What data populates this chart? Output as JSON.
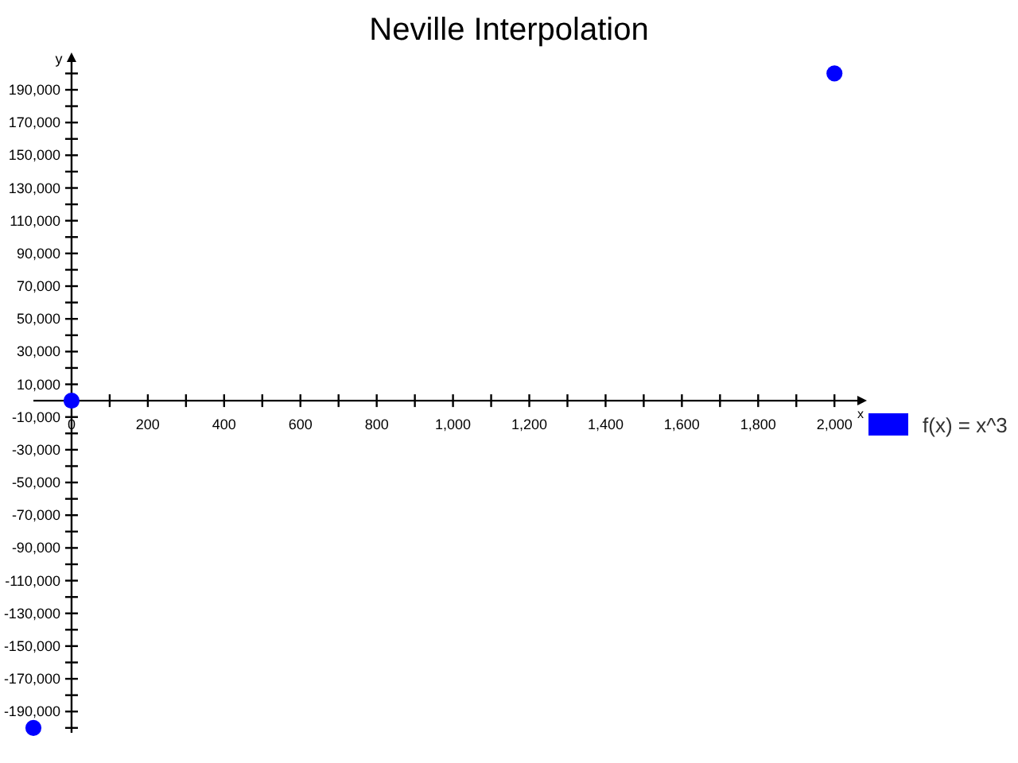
{
  "chart_data": {
    "type": "scatter",
    "title": "Neville Interpolation",
    "xlabel": "x",
    "ylabel": "y",
    "series": [
      {
        "name": "f(x) = x^3",
        "color": "#0000ff",
        "x": [
          -100,
          0,
          2000
        ],
        "values": [
          -200000,
          0,
          200000
        ]
      }
    ],
    "xlim": [
      -100,
      2060
    ],
    "ylim": [
      -203000,
      207000
    ],
    "xticks": [
      0,
      {
        "value": 100,
        "label": null
      },
      200,
      {
        "value": 300,
        "label": null
      },
      400,
      {
        "value": 500,
        "label": null
      },
      600,
      {
        "value": 700,
        "label": null
      },
      800,
      {
        "value": 900,
        "label": null
      },
      {
        "value": 1000,
        "label": "1,000"
      },
      {
        "value": 1100,
        "label": null
      },
      {
        "value": 1200,
        "label": "1,200"
      },
      {
        "value": 1300,
        "label": null
      },
      {
        "value": 1400,
        "label": "1,400"
      },
      {
        "value": 1500,
        "label": null
      },
      {
        "value": 1600,
        "label": "1,600"
      },
      {
        "value": 1700,
        "label": null
      },
      {
        "value": 1800,
        "label": "1,800"
      },
      {
        "value": 1900,
        "label": null
      },
      {
        "value": 2000,
        "label": "2,000"
      }
    ],
    "yticks": [
      {
        "value": -200000,
        "label": null
      },
      {
        "value": -190000,
        "label": "-190,000"
      },
      {
        "value": -180000,
        "label": null
      },
      {
        "value": -170000,
        "label": "-170,000"
      },
      {
        "value": -160000,
        "label": null
      },
      {
        "value": -150000,
        "label": "-150,000"
      },
      {
        "value": -140000,
        "label": null
      },
      {
        "value": -130000,
        "label": "-130,000"
      },
      {
        "value": -120000,
        "label": null
      },
      {
        "value": -110000,
        "label": "-110,000"
      },
      {
        "value": -100000,
        "label": null
      },
      {
        "value": -90000,
        "label": "-90,000"
      },
      {
        "value": -80000,
        "label": null
      },
      {
        "value": -70000,
        "label": "-70,000"
      },
      {
        "value": -60000,
        "label": null
      },
      {
        "value": -50000,
        "label": "-50,000"
      },
      {
        "value": -40000,
        "label": null
      },
      {
        "value": -30000,
        "label": "-30,000"
      },
      {
        "value": -20000,
        "label": null
      },
      {
        "value": -10000,
        "label": "-10,000"
      },
      {
        "value": 10000,
        "label": "10,000"
      },
      {
        "value": 20000,
        "label": null
      },
      {
        "value": 30000,
        "label": "30,000"
      },
      {
        "value": 40000,
        "label": null
      },
      {
        "value": 50000,
        "label": "50,000"
      },
      {
        "value": 60000,
        "label": null
      },
      {
        "value": 70000,
        "label": "70,000"
      },
      {
        "value": 80000,
        "label": null
      },
      {
        "value": 90000,
        "label": "90,000"
      },
      {
        "value": 100000,
        "label": null
      },
      {
        "value": 110000,
        "label": "110,000"
      },
      {
        "value": 120000,
        "label": null
      },
      {
        "value": 130000,
        "label": "130,000"
      },
      {
        "value": 140000,
        "label": null
      },
      {
        "value": 150000,
        "label": "150,000"
      },
      {
        "value": 160000,
        "label": null
      },
      {
        "value": 170000,
        "label": "170,000"
      },
      {
        "value": 180000,
        "label": null
      },
      {
        "value": 190000,
        "label": "190,000"
      },
      {
        "value": 200000,
        "label": null
      }
    ],
    "grid": false,
    "legend": "right",
    "marker": "circle"
  }
}
